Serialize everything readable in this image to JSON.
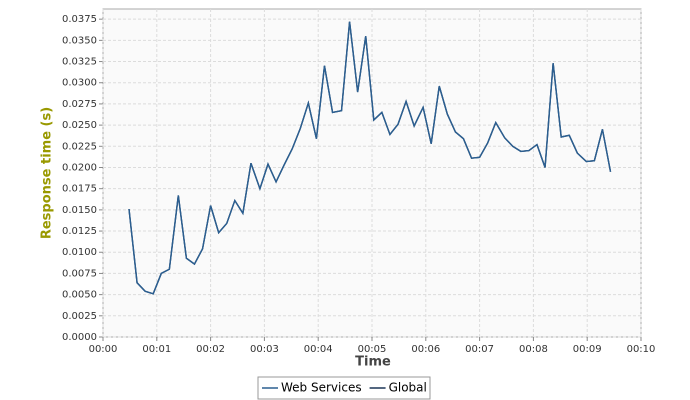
{
  "chart_data": {
    "type": "line",
    "xlabel": "Time",
    "ylabel": "Response time (s)",
    "x": [
      29,
      38,
      47,
      56,
      65,
      74,
      84,
      93,
      102,
      111,
      120,
      129,
      138,
      147,
      156,
      165,
      175,
      184,
      193,
      202,
      211,
      220,
      229,
      238,
      247,
      256,
      266,
      275,
      284,
      293,
      302,
      311,
      320,
      329,
      338,
      347,
      357,
      366,
      375,
      384,
      393,
      402,
      411,
      420,
      429,
      438,
      448,
      457,
      466,
      475,
      484,
      493,
      502,
      511,
      520,
      529,
      539,
      548,
      557,
      566
    ],
    "series": [
      {
        "name": "Web Services",
        "color": "#2b5f91",
        "values": [
          0.0151,
          0.0064,
          0.0054,
          0.0051,
          0.0075,
          0.008,
          0.0167,
          0.0093,
          0.0086,
          0.0104,
          0.0155,
          0.0123,
          0.0134,
          0.0161,
          0.0146,
          0.0205,
          0.0175,
          0.0204,
          0.0183,
          0.0203,
          0.0222,
          0.0246,
          0.0276,
          0.0234,
          0.032,
          0.0265,
          0.0267,
          0.0372,
          0.0289,
          0.0355,
          0.0256,
          0.0265,
          0.0239,
          0.0251,
          0.0278,
          0.0249,
          0.0271,
          0.0228,
          0.0296,
          0.0263,
          0.0242,
          0.0234,
          0.0211,
          0.0212,
          0.0229,
          0.0253,
          0.0235,
          0.0225,
          0.0219,
          0.022,
          0.0227,
          0.02,
          0.0323,
          0.0236,
          0.0238,
          0.0217,
          0.0207,
          0.0208,
          0.0245,
          0.0195
        ]
      },
      {
        "name": "Global",
        "color": "#1c3556",
        "values": [
          0.0151,
          0.0064,
          0.0054,
          0.0051,
          0.0075,
          0.008,
          0.0167,
          0.0093,
          0.0086,
          0.0104,
          0.0155,
          0.0123,
          0.0134,
          0.0161,
          0.0146,
          0.0205,
          0.0175,
          0.0204,
          0.0183,
          0.0203,
          0.0222,
          0.0246,
          0.0276,
          0.0234,
          0.032,
          0.0265,
          0.0267,
          0.0372,
          0.0289,
          0.0355,
          0.0256,
          0.0265,
          0.0239,
          0.0251,
          0.0278,
          0.0249,
          0.0271,
          0.0228,
          0.0296,
          0.0263,
          0.0242,
          0.0234,
          0.0211,
          0.0212,
          0.0229,
          0.0253,
          0.0235,
          0.0225,
          0.0219,
          0.022,
          0.0227,
          0.02,
          0.0323,
          0.0236,
          0.0238,
          0.0217,
          0.0207,
          0.0208,
          0.0245,
          0.0195
        ]
      }
    ],
    "xlim": [
      0,
      600
    ],
    "xticks": [
      {
        "value": 0,
        "label": "00:00"
      },
      {
        "value": 60,
        "label": "00:01"
      },
      {
        "value": 120,
        "label": "00:02"
      },
      {
        "value": 180,
        "label": "00:03"
      },
      {
        "value": 240,
        "label": "00:04"
      },
      {
        "value": 300,
        "label": "00:05"
      },
      {
        "value": 360,
        "label": "00:06"
      },
      {
        "value": 420,
        "label": "00:07"
      },
      {
        "value": 480,
        "label": "00:08"
      },
      {
        "value": 540,
        "label": "00:09"
      },
      {
        "value": 600,
        "label": "00:10"
      }
    ],
    "ylim": [
      0,
      0.0387
    ],
    "yticks": [
      {
        "value": 0,
        "label": "0.0000"
      },
      {
        "value": 0.0025,
        "label": "0.0025"
      },
      {
        "value": 0.005,
        "label": "0.0050"
      },
      {
        "value": 0.0075,
        "label": "0.0075"
      },
      {
        "value": 0.01,
        "label": "0.0100"
      },
      {
        "value": 0.0125,
        "label": "0.0125"
      },
      {
        "value": 0.015,
        "label": "0.0150"
      },
      {
        "value": 0.0175,
        "label": "0.0175"
      },
      {
        "value": 0.02,
        "label": "0.0200"
      },
      {
        "value": 0.0225,
        "label": "0.0225"
      },
      {
        "value": 0.025,
        "label": "0.0250"
      },
      {
        "value": 0.0275,
        "label": "0.0275"
      },
      {
        "value": 0.03,
        "label": "0.0300"
      },
      {
        "value": 0.0325,
        "label": "0.0325"
      },
      {
        "value": 0.035,
        "label": "0.0350"
      },
      {
        "value": 0.0375,
        "label": "0.0375"
      }
    ],
    "grid": true
  }
}
